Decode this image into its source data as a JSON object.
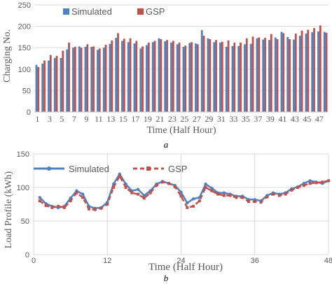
{
  "figure_labels": {
    "a": "a",
    "b": "b"
  },
  "colors": {
    "simulated": "#4f81bd",
    "gsp": "#c0504d",
    "grid": "#d9d9d9",
    "axis": "#bfbfbf",
    "text": "#595959"
  },
  "chart_data": [
    {
      "type": "bar",
      "xlabel": "Time (Half Hour)",
      "ylabel": "Charging No.",
      "ylim": [
        0,
        250
      ],
      "yticks": [
        0,
        50,
        100,
        150,
        200,
        250
      ],
      "grid": "horizontal",
      "legend_position": "top-center",
      "categories": [
        1,
        2,
        3,
        4,
        5,
        6,
        7,
        8,
        9,
        10,
        11,
        12,
        13,
        14,
        15,
        16,
        17,
        18,
        19,
        20,
        21,
        22,
        23,
        24,
        25,
        26,
        27,
        28,
        29,
        30,
        31,
        32,
        33,
        34,
        35,
        36,
        37,
        38,
        39,
        40,
        41,
        42,
        43,
        44,
        45,
        46,
        47,
        48
      ],
      "x_tick_labels": [
        "1",
        "3",
        "5",
        "7",
        "9",
        "11",
        "13",
        "15",
        "17",
        "19",
        "21",
        "23",
        "25",
        "27",
        "29",
        "31",
        "33",
        "35",
        "37",
        "39",
        "41",
        "43",
        "45",
        "47"
      ],
      "series": [
        {
          "name": "Simulated",
          "values": [
            110,
            113,
            120,
            126,
            126,
            146,
            150,
            153,
            152,
            152,
            145,
            150,
            159,
            173,
            166,
            163,
            160,
            148,
            156,
            163,
            172,
            165,
            162,
            158,
            152,
            161,
            160,
            191,
            172,
            163,
            162,
            152,
            154,
            154,
            158,
            159,
            172,
            169,
            168,
            174,
            187,
            175,
            169,
            178,
            183,
            186,
            188,
            187
          ]
        },
        {
          "name": "GSP",
          "values": [
            105,
            120,
            133,
            131,
            143,
            162,
            152,
            150,
            158,
            153,
            148,
            157,
            167,
            184,
            171,
            172,
            166,
            153,
            162,
            166,
            170,
            168,
            166,
            162,
            155,
            163,
            158,
            178,
            170,
            168,
            164,
            167,
            162,
            162,
            172,
            176,
            174,
            173,
            182,
            170,
            184,
            170,
            183,
            190,
            192,
            196,
            202,
            185
          ]
        }
      ]
    },
    {
      "type": "line",
      "xlabel": "Time (Half Hour)",
      "ylabel": "Load Profile (kWh)",
      "xlim": [
        0,
        48
      ],
      "ylim": [
        0,
        150
      ],
      "xticks": [
        0,
        12,
        24,
        36,
        48
      ],
      "yticks": [
        0,
        50,
        100,
        150
      ],
      "grid": "both",
      "legend_position": "top-left",
      "x": [
        1,
        2,
        3,
        4,
        5,
        6,
        7,
        8,
        9,
        10,
        11,
        12,
        13,
        14,
        15,
        16,
        17,
        18,
        19,
        20,
        21,
        22,
        23,
        24,
        25,
        26,
        27,
        28,
        29,
        30,
        31,
        32,
        33,
        34,
        35,
        36,
        37,
        38,
        39,
        40,
        41,
        42,
        43,
        44,
        45,
        46,
        47,
        48
      ],
      "series": [
        {
          "name": "Simulated",
          "values": [
            85,
            76,
            72,
            70,
            72,
            84,
            95,
            90,
            72,
            69,
            70,
            78,
            105,
            120,
            105,
            95,
            97,
            88,
            95,
            105,
            109,
            106,
            103,
            93,
            77,
            83,
            85,
            105,
            99,
            92,
            92,
            90,
            87,
            87,
            82,
            82,
            80,
            88,
            92,
            90,
            92,
            98,
            101,
            106,
            110,
            108,
            106,
            110
          ]
        },
        {
          "name": "GSP",
          "values": [
            80,
            73,
            70,
            72,
            70,
            80,
            92,
            85,
            68,
            67,
            69,
            75,
            100,
            117,
            100,
            92,
            90,
            84,
            92,
            103,
            108,
            106,
            101,
            87,
            70,
            72,
            80,
            100,
            95,
            90,
            88,
            88,
            85,
            85,
            79,
            79,
            78,
            86,
            90,
            88,
            90,
            96,
            100,
            103,
            106,
            107,
            108,
            110
          ]
        }
      ]
    }
  ]
}
